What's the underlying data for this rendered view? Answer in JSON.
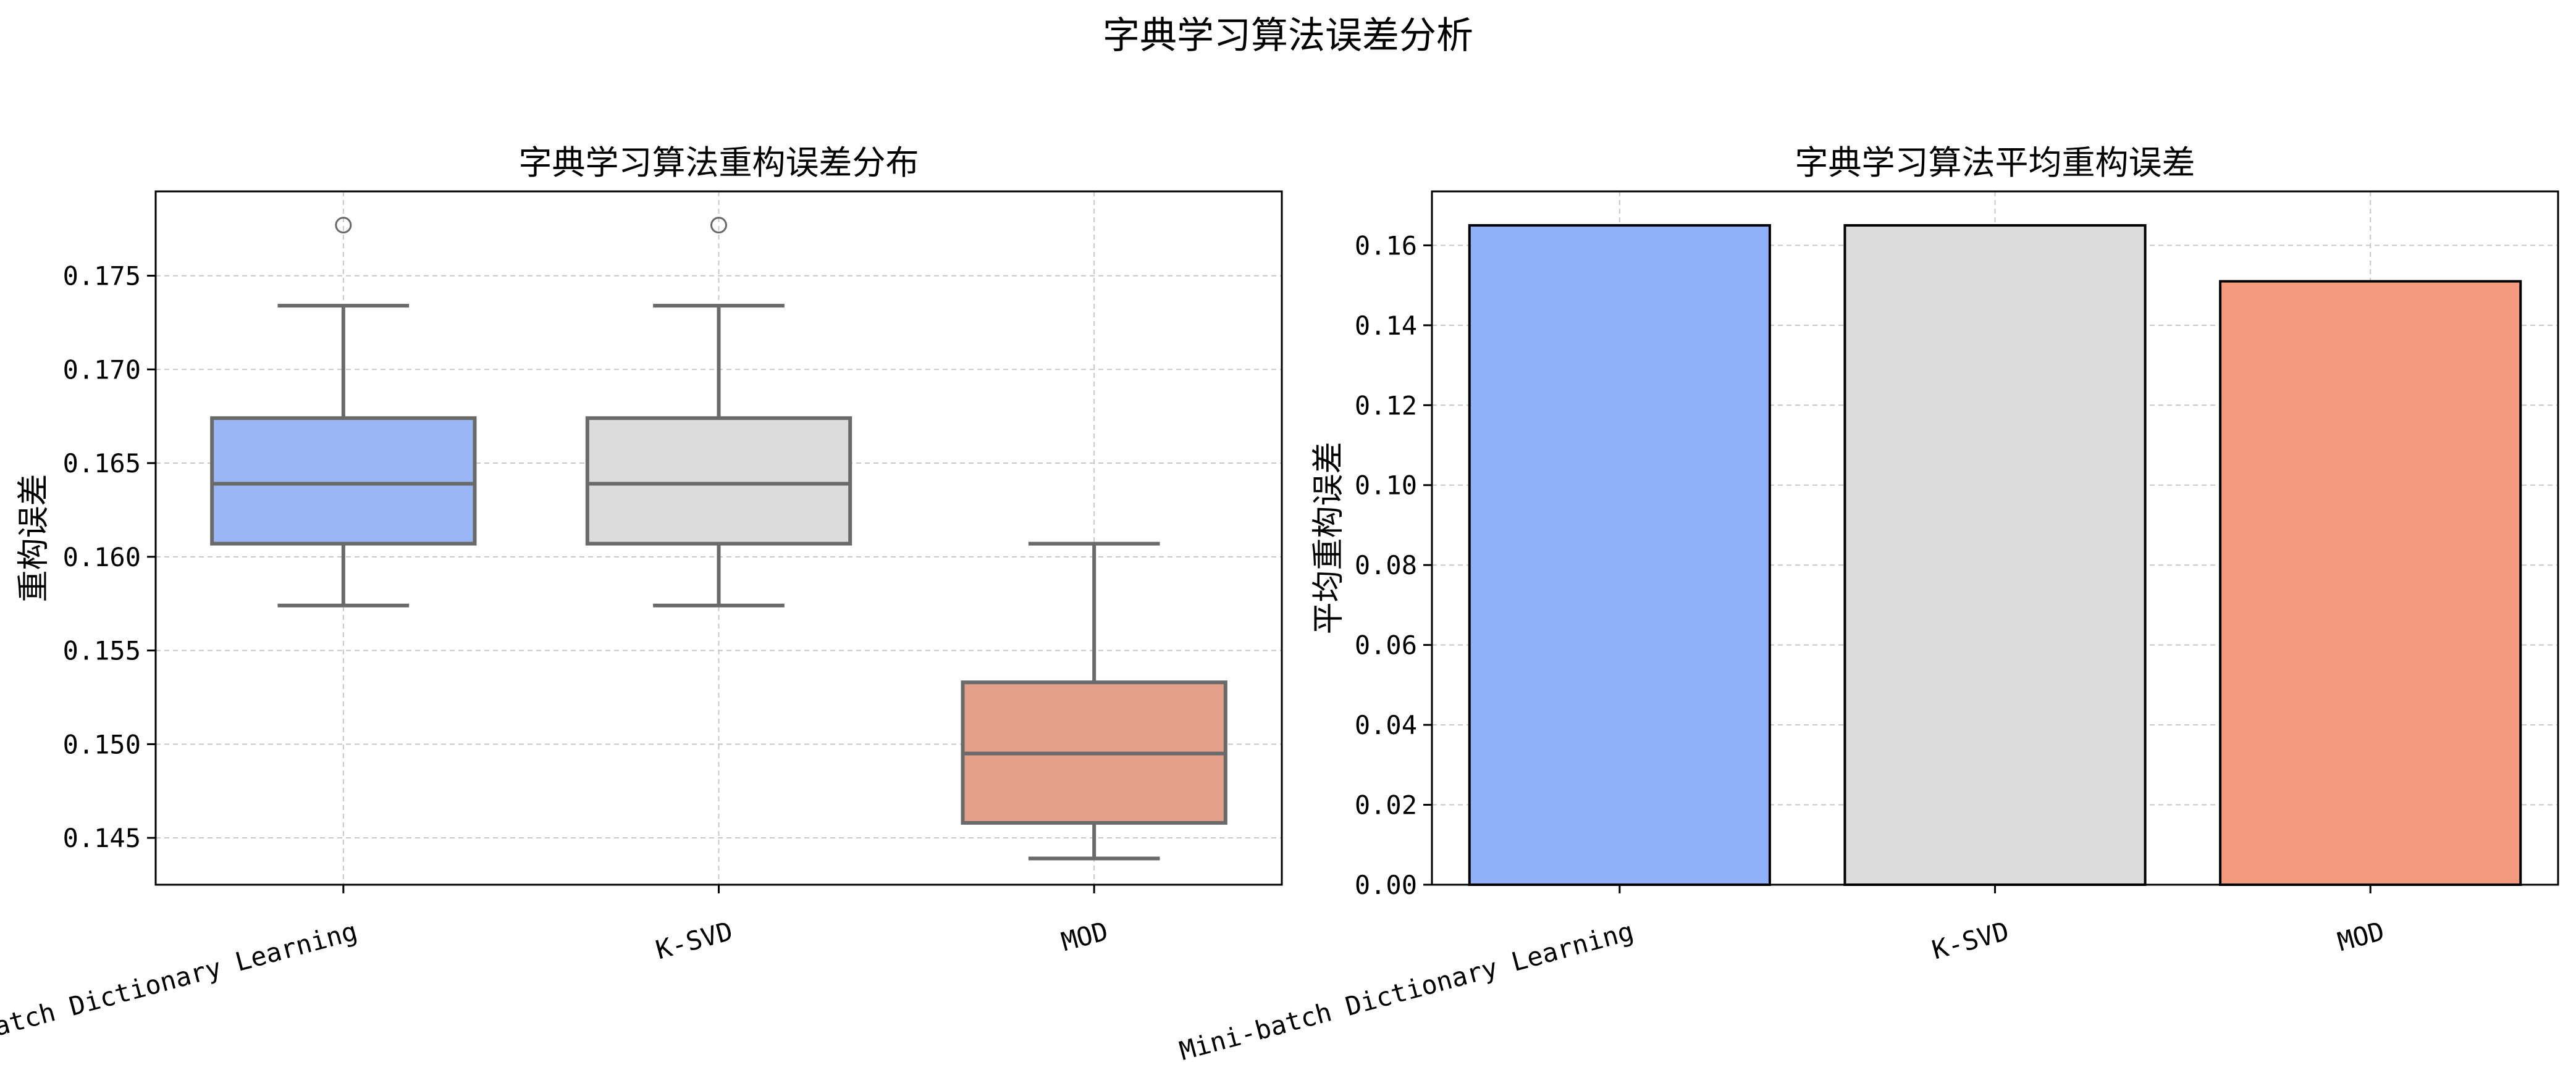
{
  "suptitle": "字典学习算法误差分析",
  "chart_data": [
    {
      "type": "box",
      "title": "字典学习算法重构误差分布",
      "xlabel": "",
      "ylabel": "重构误差",
      "categories": [
        "Mini-batch Dictionary Learning",
        "K-SVD",
        "MOD"
      ],
      "ylim": [
        0.1425,
        0.1795
      ],
      "yticks": [
        "0.145",
        "0.150",
        "0.155",
        "0.160",
        "0.165",
        "0.170",
        "0.175"
      ],
      "grid": true,
      "boxes": [
        {
          "name": "Mini-batch Dictionary Learning",
          "whisker_low": 0.1574,
          "q1": 0.1607,
          "median": 0.1639,
          "q3": 0.1674,
          "whisker_high": 0.1734,
          "outliers": [
            0.1777
          ],
          "color": "#9bb6f4"
        },
        {
          "name": "K-SVD",
          "whisker_low": 0.1574,
          "q1": 0.1607,
          "median": 0.1639,
          "q3": 0.1674,
          "whisker_high": 0.1734,
          "outliers": [
            0.1777
          ],
          "color": "#dcdcdc"
        },
        {
          "name": "MOD",
          "whisker_low": 0.1439,
          "q1": 0.1458,
          "median": 0.1495,
          "q3": 0.1533,
          "whisker_high": 0.1607,
          "outliers": [],
          "color": "#e4a08a"
        }
      ]
    },
    {
      "type": "bar",
      "title": "字典学习算法平均重构误差",
      "xlabel": "",
      "ylabel": "平均重构误差",
      "categories": [
        "Mini-batch Dictionary Learning",
        "K-SVD",
        "MOD"
      ],
      "values": [
        0.165,
        0.165,
        0.151
      ],
      "colors": [
        "#8fb0fb",
        "#dcdcdc",
        "#f29a7b"
      ],
      "ylim": [
        0,
        0.1735
      ],
      "yticks": [
        "0.00",
        "0.02",
        "0.04",
        "0.06",
        "0.08",
        "0.10",
        "0.12",
        "0.14",
        "0.16"
      ],
      "grid": true
    }
  ]
}
